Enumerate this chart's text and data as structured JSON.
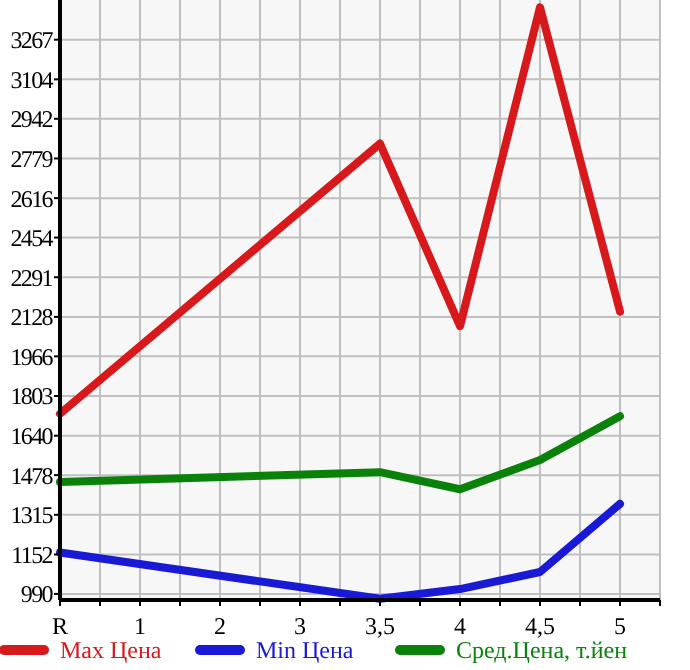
{
  "chart_data": {
    "type": "line",
    "categories": [
      "R",
      "1",
      "2",
      "3",
      "3,5",
      "4",
      "4,5",
      "5"
    ],
    "series": [
      {
        "name": "Max Цена",
        "color": "#d7191c",
        "values": [
          1730,
          null,
          null,
          null,
          2840,
          2090,
          3400,
          2150
        ]
      },
      {
        "name": "Min Цена",
        "color": "#1a1ad6",
        "values": [
          1160,
          null,
          null,
          null,
          970,
          1010,
          1080,
          1360
        ]
      },
      {
        "name": "Сред.Цена, т.йен",
        "color": "#0a820a",
        "values": [
          1450,
          null,
          null,
          null,
          1490,
          1420,
          1540,
          1720
        ]
      }
    ],
    "ylim": [
      965,
      3430
    ],
    "yticks": [
      990,
      1152,
      1315,
      1478,
      1640,
      1803,
      1966,
      2128,
      2291,
      2454,
      2616,
      2779,
      2942,
      3104,
      3267
    ],
    "grid": true,
    "legend": "bottom",
    "marker": "none",
    "line_style": "solid"
  }
}
